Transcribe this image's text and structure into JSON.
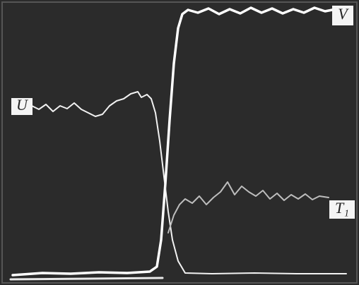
{
  "labels": {
    "u": "U",
    "v": "V",
    "t1": "T₁"
  }
}
